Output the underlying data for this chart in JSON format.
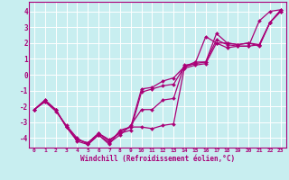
{
  "xlabel": "Windchill (Refroidissement éolien,°C)",
  "background_color": "#c8eef0",
  "line_color": "#aa0077",
  "grid_color": "#ffffff",
  "xlim": [
    -0.5,
    23.5
  ],
  "ylim": [
    -4.6,
    4.6
  ],
  "xticks": [
    0,
    1,
    2,
    3,
    4,
    5,
    6,
    7,
    8,
    9,
    10,
    11,
    12,
    13,
    14,
    15,
    16,
    17,
    18,
    19,
    20,
    21,
    22,
    23
  ],
  "yticks": [
    -4,
    -3,
    -2,
    -1,
    0,
    1,
    2,
    3,
    4
  ],
  "hours": [
    0,
    1,
    2,
    3,
    4,
    5,
    6,
    7,
    8,
    9,
    10,
    11,
    12,
    13,
    14,
    15,
    16,
    17,
    18,
    19,
    20,
    21,
    22,
    23
  ],
  "series": [
    [
      -2.2,
      -1.6,
      -2.2,
      -3.3,
      -4.1,
      -4.3,
      -3.7,
      -4.1,
      -3.7,
      -3.5,
      -1.1,
      -0.9,
      -0.7,
      -0.6,
      0.5,
      0.7,
      0.8,
      2.2,
      1.9,
      1.8,
      1.8,
      1.9,
      3.3,
      4.1
    ],
    [
      -2.2,
      -1.6,
      -2.2,
      -3.3,
      -4.1,
      -4.3,
      -3.7,
      -4.2,
      -3.6,
      -3.3,
      -0.9,
      -0.8,
      -0.4,
      -0.2,
      0.5,
      0.8,
      0.8,
      2.6,
      2.0,
      1.9,
      2.0,
      1.9,
      3.3,
      4.0
    ],
    [
      -2.2,
      -1.7,
      -2.3,
      -3.2,
      -4.0,
      -4.4,
      -3.8,
      -4.3,
      -3.8,
      -3.2,
      -2.2,
      -2.2,
      -1.6,
      -1.5,
      0.6,
      0.7,
      2.4,
      2.0,
      1.7,
      1.8,
      1.8,
      3.4,
      4.0,
      4.1
    ],
    [
      -2.2,
      -1.7,
      -2.2,
      -3.3,
      -4.2,
      -4.4,
      -3.8,
      -4.4,
      -3.5,
      -3.3,
      -3.3,
      -3.4,
      -3.2,
      -3.1,
      0.4,
      0.6,
      0.7,
      2.0,
      2.0,
      1.9,
      2.0,
      1.8,
      3.3,
      4.0
    ]
  ]
}
